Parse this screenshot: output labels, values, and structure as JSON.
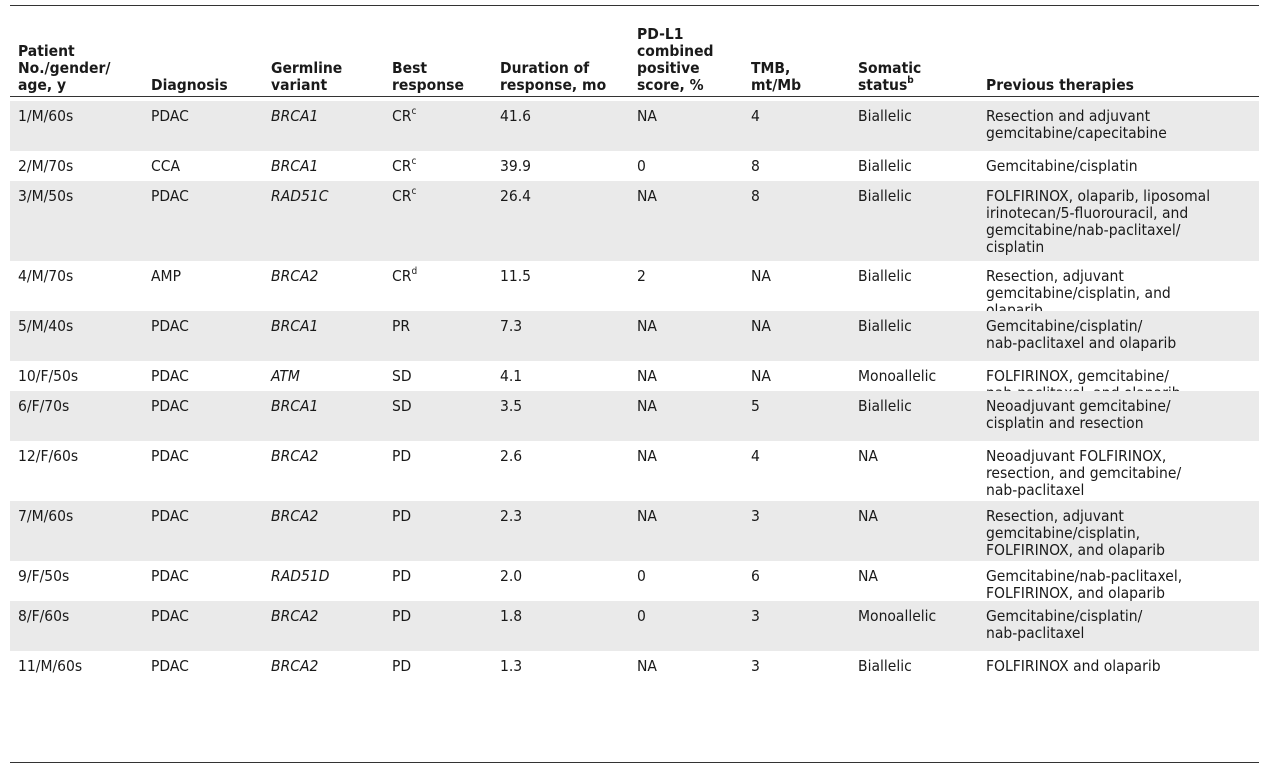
{
  "headers": [
    {
      "text": "Patient\nNo./gender/\nage, y",
      "sup": ""
    },
    {
      "text": "Diagnosis",
      "sup": ""
    },
    {
      "text": "Germline\nvariant",
      "sup": ""
    },
    {
      "text": "Best\nresponse",
      "sup": ""
    },
    {
      "text": "Duration of\nresponse, mo",
      "sup": ""
    },
    {
      "text": "PD-L1\ncombined\npositive\nscore, %",
      "sup": ""
    },
    {
      "text": "TMB,\nmt/Mb",
      "sup": ""
    },
    {
      "text": "Somatic\nstatus",
      "sup": "b"
    },
    {
      "text": "Previous therapies",
      "sup": ""
    }
  ],
  "rows": [
    {
      "patient": "1/M/60s",
      "diagnosis": "PDAC",
      "variant": "BRCA1",
      "response": "CR",
      "response_sup": "c",
      "duration": "41.6",
      "pdl1": "NA",
      "tmb": "4",
      "somatic": "Biallelic",
      "therapies": "Resection and adjuvant\ngemcitabine/capecitabine"
    },
    {
      "patient": "2/M/70s",
      "diagnosis": "CCA",
      "variant": "BRCA1",
      "response": "CR",
      "response_sup": "c",
      "duration": "39.9",
      "pdl1": "0",
      "tmb": "8",
      "somatic": "Biallelic",
      "therapies": "Gemcitabine/cisplatin"
    },
    {
      "patient": "3/M/50s",
      "diagnosis": "PDAC",
      "variant": "RAD51C",
      "response": "CR",
      "response_sup": "c",
      "duration": "26.4",
      "pdl1": "NA",
      "tmb": "8",
      "somatic": "Biallelic",
      "therapies": "FOLFIRINOX, olaparib, liposomal\nirinotecan/5-fluorouracil, and\ngemcitabine/nab-paclitaxel/\ncisplatin"
    },
    {
      "patient": "4/M/70s",
      "diagnosis": "AMP",
      "variant": "BRCA2",
      "response": "CR",
      "response_sup": "d",
      "duration": "11.5",
      "pdl1": "2",
      "tmb": "NA",
      "somatic": "Biallelic",
      "therapies": "Resection, adjuvant\ngemcitabine/cisplatin, and\nolaparib"
    },
    {
      "patient": "5/M/40s",
      "diagnosis": "PDAC",
      "variant": "BRCA1",
      "response": "PR",
      "response_sup": "",
      "duration": "7.3",
      "pdl1": "NA",
      "tmb": "NA",
      "somatic": "Biallelic",
      "therapies": "Gemcitabine/cisplatin/\nnab-paclitaxel and olaparib"
    },
    {
      "patient": "10/F/50s",
      "diagnosis": "PDAC",
      "variant": "ATM",
      "response": "SD",
      "response_sup": "",
      "duration": "4.1",
      "pdl1": "NA",
      "tmb": "NA",
      "somatic": "Monoallelic",
      "therapies": "FOLFIRINOX, gemcitabine/\nnab-paclitaxel, and olaparib"
    },
    {
      "patient": "6/F/70s",
      "diagnosis": "PDAC",
      "variant": "BRCA1",
      "response": "SD",
      "response_sup": "",
      "duration": "3.5",
      "pdl1": "NA",
      "tmb": "5",
      "somatic": "Biallelic",
      "therapies": "Neoadjuvant gemcitabine/\ncisplatin and resection"
    },
    {
      "patient": "12/F/60s",
      "diagnosis": "PDAC",
      "variant": "BRCA2",
      "response": "PD",
      "response_sup": "",
      "duration": "2.6",
      "pdl1": "NA",
      "tmb": "4",
      "somatic": "NA",
      "therapies": "Neoadjuvant FOLFIRINOX,\nresection, and gemcitabine/\nnab-paclitaxel"
    },
    {
      "patient": "7/M/60s",
      "diagnosis": "PDAC",
      "variant": "BRCA2",
      "response": "PD",
      "response_sup": "",
      "duration": "2.3",
      "pdl1": "NA",
      "tmb": "3",
      "somatic": "NA",
      "therapies": "Resection, adjuvant\ngemcitabine/cisplatin,\nFOLFIRINOX, and olaparib"
    },
    {
      "patient": "9/F/50s",
      "diagnosis": "PDAC",
      "variant": "RAD51D",
      "response": "PD",
      "response_sup": "",
      "duration": "2.0",
      "pdl1": "0",
      "tmb": "6",
      "somatic": "NA",
      "therapies": "Gemcitabine/nab-paclitaxel,\nFOLFIRINOX, and olaparib"
    },
    {
      "patient": "8/F/60s",
      "diagnosis": "PDAC",
      "variant": "BRCA2",
      "response": "PD",
      "response_sup": "",
      "duration": "1.8",
      "pdl1": "0",
      "tmb": "3",
      "somatic": "Monoallelic",
      "therapies": "Gemcitabine/cisplatin/\nnab-paclitaxel"
    },
    {
      "patient": "11/M/60s",
      "diagnosis": "PDAC",
      "variant": "BRCA2",
      "response": "PD",
      "response_sup": "",
      "duration": "1.3",
      "pdl1": "NA",
      "tmb": "3",
      "somatic": "Biallelic",
      "therapies": "FOLFIRINOX and olaparib"
    }
  ]
}
